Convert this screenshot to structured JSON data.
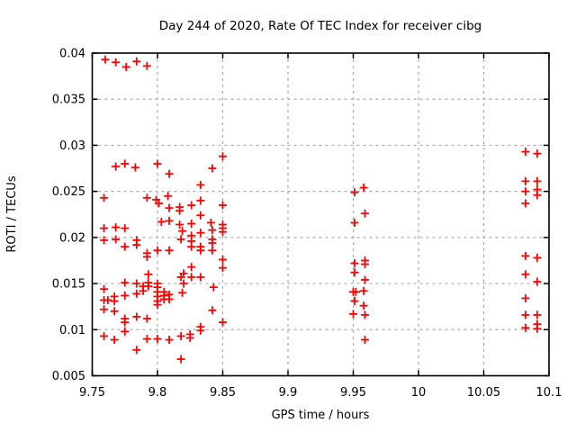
{
  "window": {
    "background": "#ffffff"
  },
  "chart_data": {
    "type": "scatter",
    "title": "Day 244 of 2020, Rate Of TEC Index for receiver cibg",
    "xlabel": "GPS time / hours",
    "ylabel": "ROTI / TECUs",
    "xlim": [
      9.75,
      10.1
    ],
    "ylim": [
      0.005,
      0.04
    ],
    "xticks": [
      9.75,
      9.8,
      9.85,
      9.9,
      9.95,
      10,
      10.05,
      10.1
    ],
    "xtick_labels": [
      "9.75",
      "9.8",
      "9.85",
      "9.9",
      "9.95",
      "10",
      "10.05",
      "10.1"
    ],
    "yticks": [
      0.005,
      0.01,
      0.015,
      0.02,
      0.025,
      0.03,
      0.035,
      0.04
    ],
    "ytick_labels": [
      "0.005",
      "0.01",
      "0.015",
      "0.02",
      "0.025",
      "0.03",
      "0.035",
      "0.04"
    ],
    "grid": true,
    "grid_style": "dashed",
    "grid_color": "#a8a8a8",
    "border_color": "#000000",
    "legend": false,
    "marker": {
      "shape": "plus",
      "color": "#ff0000",
      "size": 9,
      "stroke_width": 1.8
    },
    "series": [
      {
        "name": "ROTI",
        "points": [
          [
            9.76,
            0.0393
          ],
          [
            9.768,
            0.039
          ],
          [
            9.776,
            0.0385
          ],
          [
            9.784,
            0.0391
          ],
          [
            9.792,
            0.0386
          ],
          [
            9.768,
            0.0277
          ],
          [
            9.775,
            0.028
          ],
          [
            9.783,
            0.0276
          ],
          [
            9.8,
            0.028
          ],
          [
            9.809,
            0.0269
          ],
          [
            9.842,
            0.0275
          ],
          [
            9.85,
            0.0288
          ],
          [
            9.833,
            0.0257
          ],
          [
            9.759,
            0.0243
          ],
          [
            9.792,
            0.0243
          ],
          [
            9.799,
            0.0241
          ],
          [
            9.801,
            0.0237
          ],
          [
            9.808,
            0.0245
          ],
          [
            9.833,
            0.024
          ],
          [
            9.85,
            0.0235
          ],
          [
            9.809,
            0.0232
          ],
          [
            9.817,
            0.0233
          ],
          [
            9.817,
            0.0229
          ],
          [
            9.826,
            0.0235
          ],
          [
            9.833,
            0.0224
          ],
          [
            9.803,
            0.0217
          ],
          [
            9.809,
            0.0218
          ],
          [
            9.817,
            0.0214
          ],
          [
            9.826,
            0.0215
          ],
          [
            9.841,
            0.0216
          ],
          [
            9.85,
            0.0214
          ],
          [
            9.85,
            0.021
          ],
          [
            9.759,
            0.021
          ],
          [
            9.768,
            0.0211
          ],
          [
            9.775,
            0.021
          ],
          [
            9.819,
            0.0207
          ],
          [
            9.826,
            0.0202
          ],
          [
            9.833,
            0.0205
          ],
          [
            9.842,
            0.0208
          ],
          [
            9.85,
            0.0206
          ],
          [
            9.759,
            0.0197
          ],
          [
            9.768,
            0.0198
          ],
          [
            9.784,
            0.0197
          ],
          [
            9.784,
            0.0192
          ],
          [
            9.775,
            0.019
          ],
          [
            9.818,
            0.0198
          ],
          [
            9.826,
            0.0196
          ],
          [
            9.842,
            0.0198
          ],
          [
            9.826,
            0.019
          ],
          [
            9.833,
            0.019
          ],
          [
            9.809,
            0.0186
          ],
          [
            9.833,
            0.0186
          ],
          [
            9.842,
            0.0194
          ],
          [
            9.842,
            0.0186
          ],
          [
            9.8,
            0.0186
          ],
          [
            9.792,
            0.0183
          ],
          [
            9.792,
            0.0179
          ],
          [
            9.85,
            0.0176
          ],
          [
            9.85,
            0.0167
          ],
          [
            9.826,
            0.0168
          ],
          [
            9.793,
            0.016
          ],
          [
            9.82,
            0.0161
          ],
          [
            9.818,
            0.0157
          ],
          [
            9.826,
            0.0157
          ],
          [
            9.833,
            0.0157
          ],
          [
            9.775,
            0.0151
          ],
          [
            9.784,
            0.015
          ],
          [
            9.793,
            0.0151
          ],
          [
            9.793,
            0.0147
          ],
          [
            9.82,
            0.015
          ],
          [
            9.843,
            0.0146
          ],
          [
            9.759,
            0.0144
          ],
          [
            9.789,
            0.0147
          ],
          [
            9.789,
            0.0142
          ],
          [
            9.8,
            0.015
          ],
          [
            9.8,
            0.0146
          ],
          [
            9.8,
            0.0141
          ],
          [
            9.8,
            0.0136
          ],
          [
            9.8,
            0.0131
          ],
          [
            9.8,
            0.0127
          ],
          [
            9.805,
            0.0141
          ],
          [
            9.805,
            0.0137
          ],
          [
            9.805,
            0.0133
          ],
          [
            9.784,
            0.0139
          ],
          [
            9.767,
            0.0136
          ],
          [
            9.767,
            0.0131
          ],
          [
            9.775,
            0.0137
          ],
          [
            9.759,
            0.0132
          ],
          [
            9.762,
            0.0132
          ],
          [
            9.809,
            0.0138
          ],
          [
            9.809,
            0.0133
          ],
          [
            9.819,
            0.014
          ],
          [
            9.759,
            0.0122
          ],
          [
            9.767,
            0.012
          ],
          [
            9.842,
            0.0121
          ],
          [
            9.775,
            0.0112
          ],
          [
            9.775,
            0.0108
          ],
          [
            9.784,
            0.0114
          ],
          [
            9.792,
            0.0112
          ],
          [
            9.85,
            0.0108
          ],
          [
            9.833,
            0.0103
          ],
          [
            9.833,
            0.0099
          ],
          [
            9.775,
            0.0098
          ],
          [
            9.759,
            0.0093
          ],
          [
            9.767,
            0.0089
          ],
          [
            9.792,
            0.009
          ],
          [
            9.8,
            0.009
          ],
          [
            9.809,
            0.0089
          ],
          [
            9.818,
            0.0093
          ],
          [
            9.825,
            0.0095
          ],
          [
            9.825,
            0.0091
          ],
          [
            9.784,
            0.0078
          ],
          [
            9.818,
            0.0068
          ],
          [
            9.951,
            0.0249
          ],
          [
            9.958,
            0.0254
          ],
          [
            9.959,
            0.0226
          ],
          [
            9.951,
            0.0216
          ],
          [
            9.951,
            0.0172
          ],
          [
            9.959,
            0.0175
          ],
          [
            9.959,
            0.0171
          ],
          [
            9.951,
            0.0162
          ],
          [
            9.959,
            0.0154
          ],
          [
            9.95,
            0.0141
          ],
          [
            9.952,
            0.0141
          ],
          [
            9.958,
            0.0142
          ],
          [
            9.951,
            0.0131
          ],
          [
            9.958,
            0.0126
          ],
          [
            9.95,
            0.0117
          ],
          [
            9.959,
            0.0116
          ],
          [
            9.959,
            0.0089
          ],
          [
            10.082,
            0.0293
          ],
          [
            10.091,
            0.0291
          ],
          [
            10.082,
            0.0261
          ],
          [
            10.091,
            0.0261
          ],
          [
            10.082,
            0.025
          ],
          [
            10.091,
            0.0252
          ],
          [
            10.091,
            0.0246
          ],
          [
            10.082,
            0.0237
          ],
          [
            10.082,
            0.018
          ],
          [
            10.091,
            0.0178
          ],
          [
            10.082,
            0.016
          ],
          [
            10.091,
            0.0152
          ],
          [
            10.082,
            0.0134
          ],
          [
            10.082,
            0.0116
          ],
          [
            10.091,
            0.0116
          ],
          [
            10.082,
            0.0102
          ],
          [
            10.091,
            0.0106
          ],
          [
            10.091,
            0.0101
          ]
        ]
      }
    ]
  }
}
